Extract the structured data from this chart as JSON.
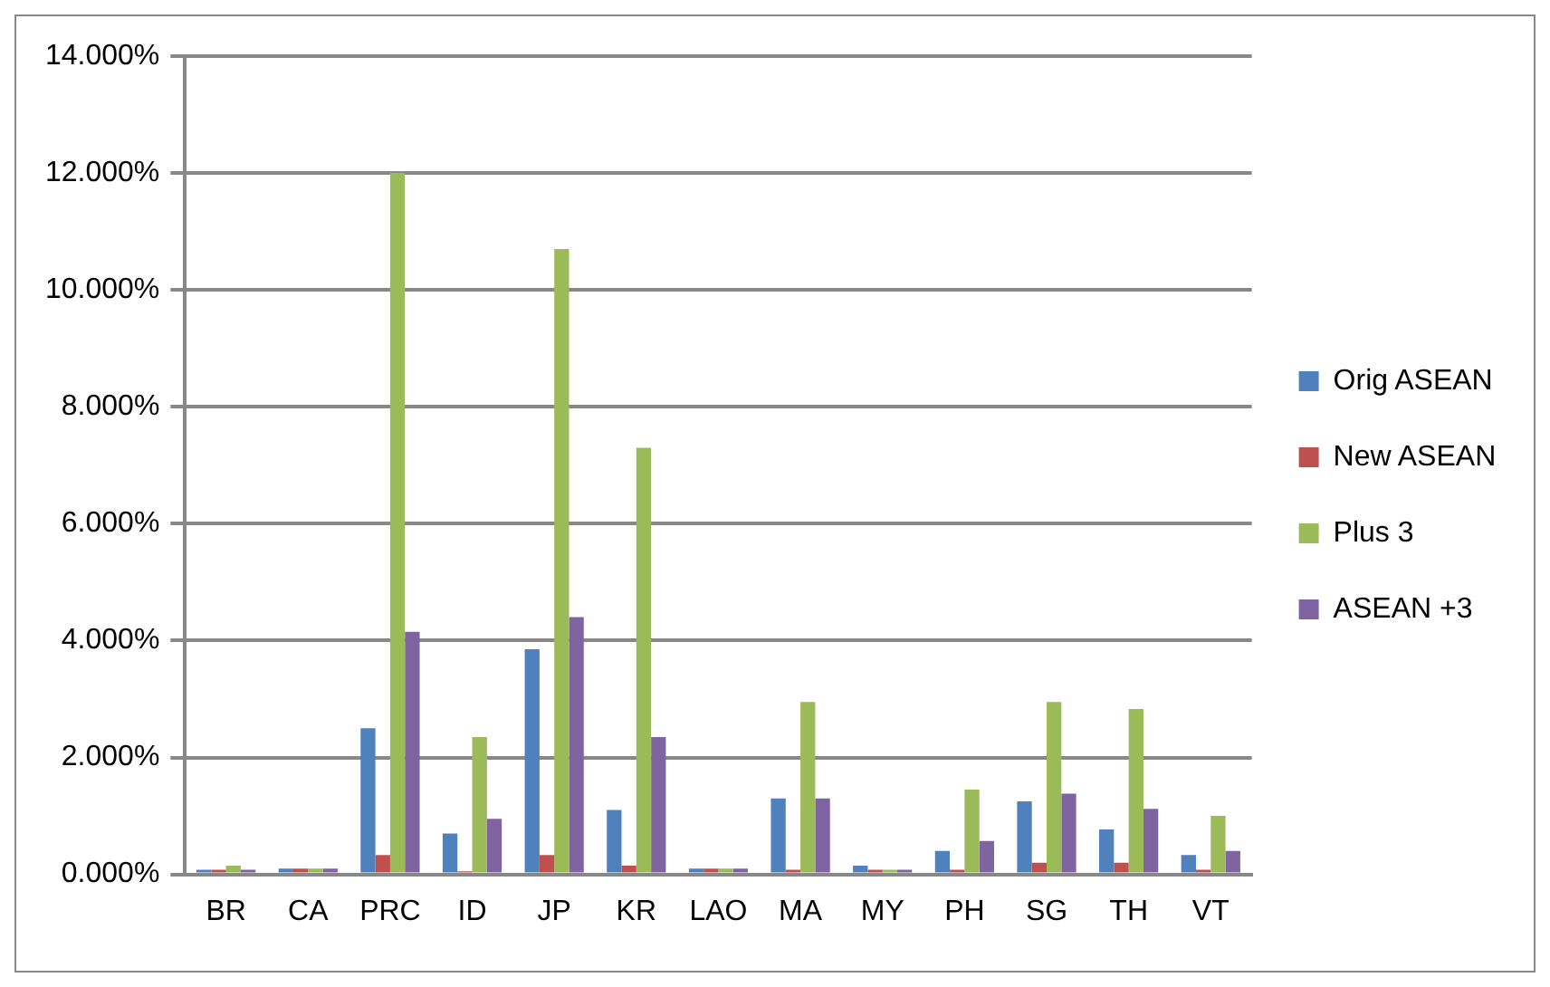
{
  "chart_data": {
    "type": "bar",
    "categories": [
      "BR",
      "CA",
      "PRC",
      "ID",
      "JP",
      "KR",
      "LAO",
      "MA",
      "MY",
      "PH",
      "SG",
      "TH",
      "VT"
    ],
    "series": [
      {
        "name": "Orig ASEAN",
        "color": "#4f81bd",
        "values": [
          0.08,
          0.1,
          2.5,
          0.7,
          3.85,
          1.1,
          0.1,
          1.3,
          0.15,
          0.4,
          1.25,
          0.77,
          0.33
        ]
      },
      {
        "name": "New ASEAN",
        "color": "#c0504d",
        "values": [
          0.08,
          0.1,
          0.33,
          0.05,
          0.33,
          0.15,
          0.1,
          0.08,
          0.08,
          0.08,
          0.2,
          0.2,
          0.08
        ]
      },
      {
        "name": "Plus 3",
        "color": "#9bbb59",
        "values": [
          0.15,
          0.1,
          12.0,
          2.35,
          10.7,
          7.3,
          0.1,
          2.95,
          0.08,
          1.45,
          2.95,
          2.83,
          1.0
        ]
      },
      {
        "name": "ASEAN +3",
        "color": "#8064a2",
        "values": [
          0.08,
          0.1,
          4.15,
          0.95,
          4.4,
          2.35,
          0.1,
          1.3,
          0.08,
          0.57,
          1.38,
          1.12,
          0.4
        ]
      }
    ],
    "ylim": [
      0,
      14
    ],
    "yticks": [
      {
        "value": 0,
        "label": "0.000%"
      },
      {
        "value": 2,
        "label": "2.000%"
      },
      {
        "value": 4,
        "label": "4.000%"
      },
      {
        "value": 6,
        "label": "6.000%"
      },
      {
        "value": 8,
        "label": "8.000%"
      },
      {
        "value": 10,
        "label": "10.000%"
      },
      {
        "value": 12,
        "label": "12.000%"
      },
      {
        "value": 14,
        "label": "14.000%"
      }
    ],
    "grid": "y",
    "legend": "right"
  }
}
